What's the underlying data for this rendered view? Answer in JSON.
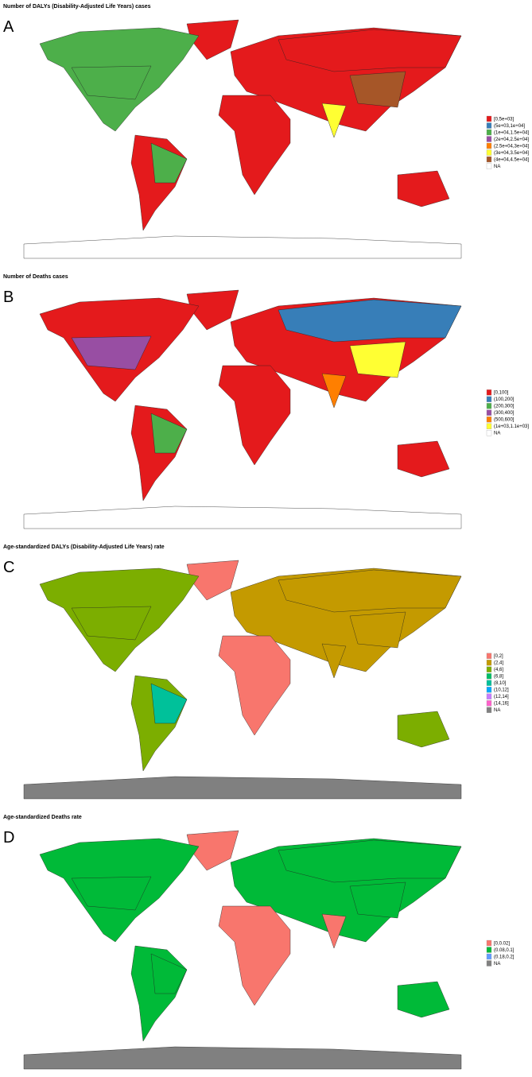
{
  "panels": [
    {
      "letter": "A",
      "title": "Number of DALYs (Disability-Adjusted Life Years) cases",
      "legend": [
        {
          "label": "[0,5e+03]",
          "color": "#e41a1c"
        },
        {
          "label": "(5e+03,1e+04]",
          "color": "#377eb8"
        },
        {
          "label": "(1e+04,1.5e+04]",
          "color": "#4daf4a"
        },
        {
          "label": "(2e+04,2.5e+04]",
          "color": "#984ea3"
        },
        {
          "label": "(2.5e+04,3e+04]",
          "color": "#ff7f00"
        },
        {
          "label": "(3e+04,3.5e+04]",
          "color": "#ffff33"
        },
        {
          "label": "(4e+04,4.5e+04]",
          "color": "#a65628"
        },
        {
          "label": "NA",
          "color": "#ffffff"
        }
      ]
    },
    {
      "letter": "B",
      "title": "Number of Deaths cases",
      "legend": [
        {
          "label": "[0,100]",
          "color": "#e41a1c"
        },
        {
          "label": "(100,200]",
          "color": "#377eb8"
        },
        {
          "label": "(200,300]",
          "color": "#4daf4a"
        },
        {
          "label": "(300,400]",
          "color": "#984ea3"
        },
        {
          "label": "(500,600]",
          "color": "#ff7f00"
        },
        {
          "label": "(1e+03,1.1e+03]",
          "color": "#ffff33"
        },
        {
          "label": "NA",
          "color": "#ffffff"
        }
      ]
    },
    {
      "letter": "C",
      "title": "Age-standardized DALYs (Disability-Adjusted Life Years) rate",
      "legend": [
        {
          "label": "[0,2]",
          "color": "#f8766d"
        },
        {
          "label": "(2,4]",
          "color": "#c49a00"
        },
        {
          "label": "(4,6]",
          "color": "#7cae00"
        },
        {
          "label": "(6,8]",
          "color": "#00be67"
        },
        {
          "label": "(8,10]",
          "color": "#00c19a"
        },
        {
          "label": "(10,12]",
          "color": "#00a9ff"
        },
        {
          "label": "(12,14]",
          "color": "#c77cff"
        },
        {
          "label": "(14,16]",
          "color": "#ff61cc"
        },
        {
          "label": "NA",
          "color": "#808080"
        }
      ]
    },
    {
      "letter": "D",
      "title": "Age-standardized Deaths rate",
      "legend": [
        {
          "label": "[0,0.02]",
          "color": "#f8766d"
        },
        {
          "label": "(0.08,0.1]",
          "color": "#00ba38"
        },
        {
          "label": "(0.18,0.2]",
          "color": "#619cff"
        },
        {
          "label": "NA",
          "color": "#808080"
        }
      ]
    }
  ]
}
